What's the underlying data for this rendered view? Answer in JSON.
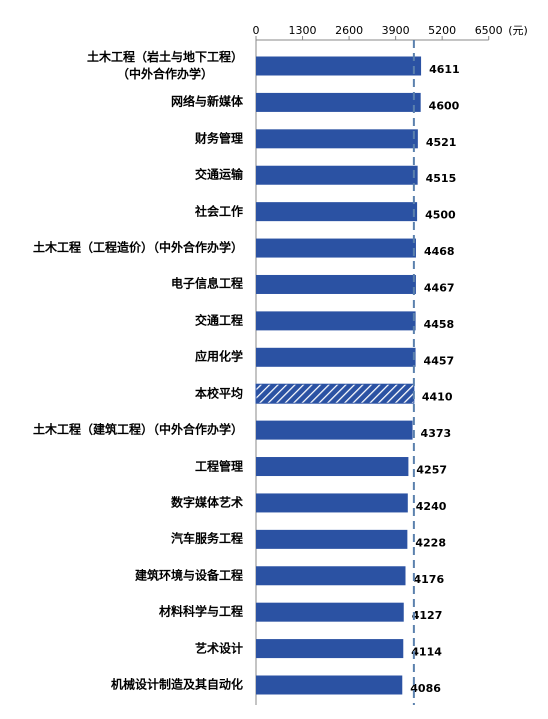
{
  "chart_data": {
    "type": "barh",
    "categories": [
      "土木工程（岩土与地下工程）\n（中外合作办学）",
      "网络与新媒体",
      "财务管理",
      "交通运输",
      "社会工作",
      "土木工程（工程造价）（中外合作办学）",
      "电子信息工程",
      "交通工程",
      "应用化学",
      "本校平均",
      "土木工程（建筑工程）（中外合作办学）",
      "工程管理",
      "数字媒体艺术",
      "汽车服务工程",
      "建筑环境与设备工程",
      "材料科学与工程",
      "艺术设计",
      "机械设计制造及其自动化"
    ],
    "values": [
      4611,
      4600,
      4521,
      4515,
      4500,
      4468,
      4467,
      4458,
      4457,
      4410,
      4373,
      4257,
      4240,
      4228,
      4176,
      4127,
      4114,
      4086
    ],
    "bar_patterns": [
      "solid",
      "solid",
      "solid",
      "solid",
      "solid",
      "solid",
      "solid",
      "solid",
      "solid",
      "hatch",
      "solid",
      "solid",
      "solid",
      "solid",
      "solid",
      "solid",
      "solid",
      "solid"
    ],
    "reference_line": "dashed",
    "color": "#2b52a3",
    "x_unit": "(元)",
    "xlim": [
      0,
      6500
    ],
    "xticks": [
      0,
      1300,
      2600,
      3900,
      5200,
      6500
    ]
  }
}
